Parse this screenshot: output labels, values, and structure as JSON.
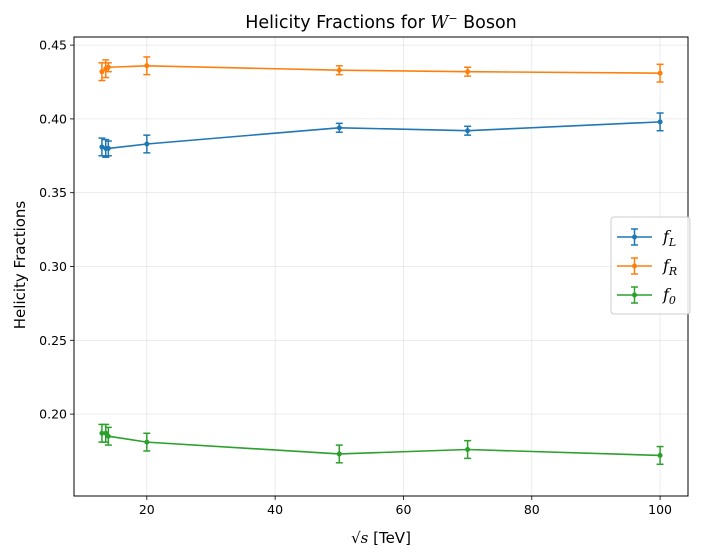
{
  "chart_data": {
    "type": "line",
    "title_prefix": "Helicity Fractions for ",
    "title_math": "W",
    "title_sup": "−",
    "title_suffix": " Boson",
    "xlabel_math": "√s",
    "xlabel_unit": " [TeV]",
    "ylabel": "Helicity Fractions",
    "xlim": [
      8.65,
      104.35
    ],
    "ylim": [
      0.1445,
      0.4555
    ],
    "x_ticks": [
      20,
      40,
      60,
      80,
      100
    ],
    "x_tick_labels": [
      "20",
      "40",
      "60",
      "80",
      "100"
    ],
    "y_ticks": [
      0.2,
      0.25,
      0.3,
      0.35,
      0.4,
      0.45
    ],
    "y_tick_labels": [
      "0.20",
      "0.25",
      "0.30",
      "0.35",
      "0.40",
      "0.45"
    ],
    "grid": true,
    "legend_position": "right",
    "x": [
      13,
      13.6,
      14,
      20,
      50,
      70,
      100
    ],
    "series": [
      {
        "name_main": "f",
        "name_sub": "L",
        "color": "#1f77b4",
        "values": [
          0.381,
          0.38,
          0.38,
          0.383,
          0.394,
          0.392,
          0.398
        ],
        "errors": [
          0.006,
          0.006,
          0.005,
          0.006,
          0.003,
          0.003,
          0.006
        ]
      },
      {
        "name_main": "f",
        "name_sub": "R",
        "color": "#ff7f0e",
        "values": [
          0.432,
          0.434,
          0.435,
          0.436,
          0.433,
          0.432,
          0.431
        ],
        "errors": [
          0.006,
          0.006,
          0.003,
          0.006,
          0.003,
          0.003,
          0.006
        ]
      },
      {
        "name_main": "f",
        "name_sub": "0",
        "color": "#2ca02c",
        "values": [
          0.187,
          0.187,
          0.185,
          0.181,
          0.173,
          0.176,
          0.172
        ],
        "errors": [
          0.006,
          0.006,
          0.006,
          0.006,
          0.006,
          0.006,
          0.006
        ]
      }
    ]
  }
}
